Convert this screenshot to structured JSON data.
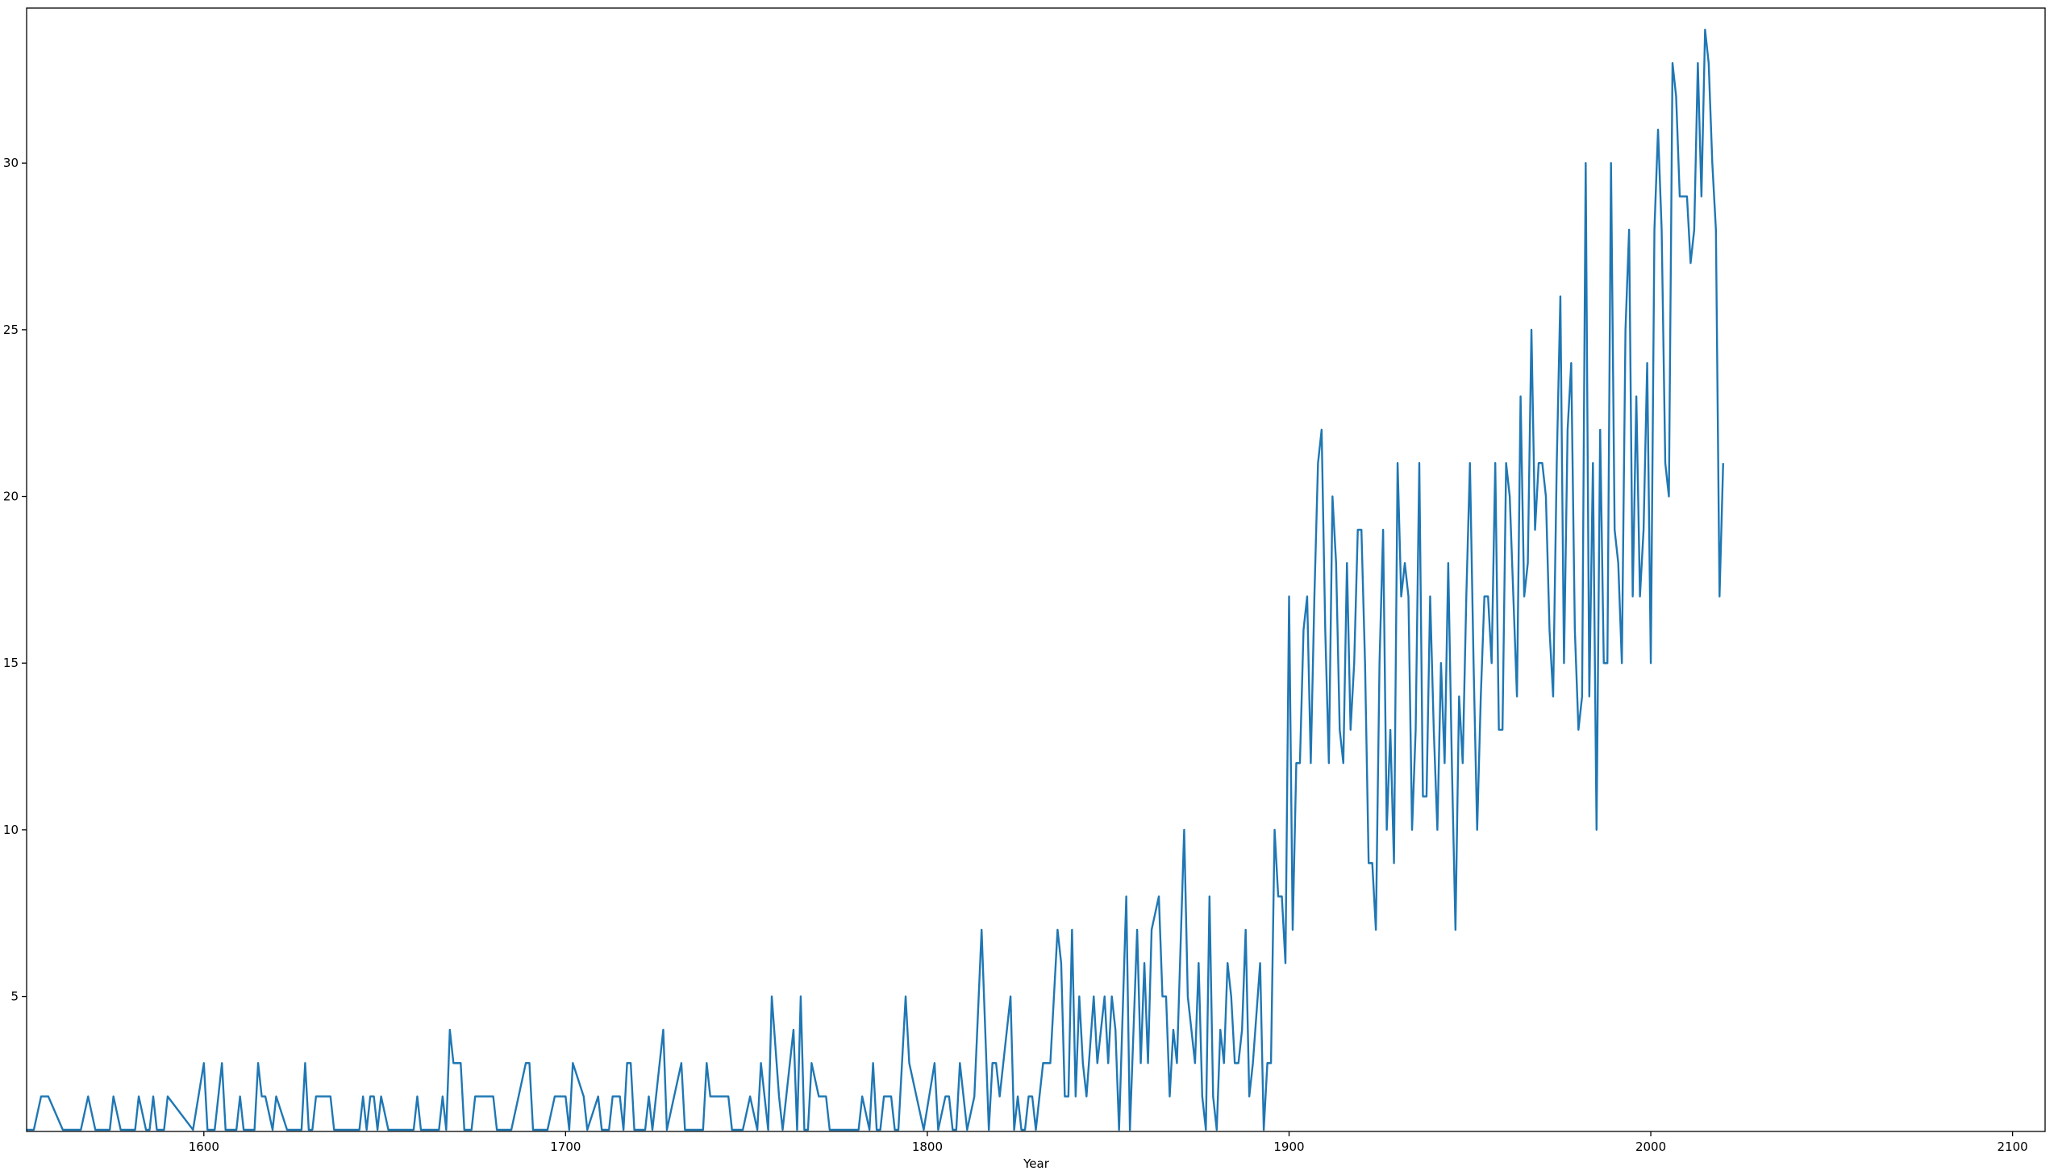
{
  "chart_data": {
    "type": "line",
    "xlabel": "Year",
    "x": [
      1551,
      1553,
      1555,
      1557,
      1561,
      1566,
      1568,
      1570,
      1574,
      1575,
      1577,
      1581,
      1582,
      1584,
      1585,
      1586,
      1587,
      1589,
      1590,
      1597,
      1600,
      1601,
      1603,
      1605,
      1606,
      1609,
      1610,
      1611,
      1614,
      1615,
      1616,
      1617,
      1619,
      1620,
      1623,
      1627,
      1628,
      1629,
      1630,
      1631,
      1635,
      1636,
      1643,
      1644,
      1645,
      1646,
      1647,
      1648,
      1649,
      1651,
      1658,
      1659,
      1660,
      1665,
      1666,
      1667,
      1668,
      1669,
      1671,
      1672,
      1674,
      1675,
      1680,
      1681,
      1685,
      1689,
      1690,
      1691,
      1695,
      1697,
      1700,
      1701,
      1702,
      1705,
      1706,
      1709,
      1710,
      1712,
      1713,
      1715,
      1716,
      1717,
      1718,
      1719,
      1722,
      1723,
      1724,
      1727,
      1728,
      1732,
      1733,
      1738,
      1739,
      1740,
      1745,
      1746,
      1749,
      1751,
      1753,
      1754,
      1756,
      1757,
      1759,
      1760,
      1763,
      1764,
      1765,
      1766,
      1767,
      1768,
      1770,
      1772,
      1773,
      1781,
      1782,
      1784,
      1785,
      1786,
      1787,
      1788,
      1790,
      1791,
      1792,
      1794,
      1795,
      1797,
      1799,
      1802,
      1803,
      1805,
      1806,
      1807,
      1808,
      1809,
      1811,
      1813,
      1815,
      1817,
      1818,
      1819,
      1820,
      1823,
      1824,
      1825,
      1826,
      1827,
      1828,
      1829,
      1830,
      1832,
      1834,
      1836,
      1837,
      1838,
      1839,
      1840,
      1841,
      1842,
      1843,
      1844,
      1846,
      1847,
      1848,
      1849,
      1850,
      1851,
      1852,
      1853,
      1855,
      1856,
      1858,
      1859,
      1860,
      1861,
      1862,
      1864,
      1865,
      1866,
      1867,
      1868,
      1869,
      1871,
      1872,
      1873,
      1874,
      1875,
      1876,
      1877,
      1878,
      1879,
      1880,
      1881,
      1882,
      1883,
      1884,
      1885,
      1886,
      1887,
      1888,
      1889,
      1890,
      1892,
      1893,
      1894,
      1895,
      1896,
      1897,
      1898,
      1899,
      1900,
      1901,
      1902,
      1903,
      1904,
      1905,
      1906,
      1907,
      1908,
      1909,
      1910,
      1911,
      1912,
      1913,
      1914,
      1915,
      1916,
      1917,
      1918,
      1919,
      1920,
      1921,
      1922,
      1923,
      1924,
      1925,
      1926,
      1927,
      1928,
      1929,
      1930,
      1931,
      1932,
      1933,
      1934,
      1935,
      1936,
      1937,
      1938,
      1939,
      1940,
      1941,
      1942,
      1943,
      1944,
      1945,
      1946,
      1947,
      1948,
      1949,
      1950,
      1951,
      1952,
      1953,
      1954,
      1955,
      1956,
      1957,
      1958,
      1959,
      1960,
      1961,
      1962,
      1963,
      1964,
      1965,
      1966,
      1967,
      1968,
      1969,
      1970,
      1971,
      1972,
      1973,
      1974,
      1975,
      1976,
      1977,
      1978,
      1979,
      1980,
      1981,
      1982,
      1983,
      1984,
      1985,
      1986,
      1987,
      1988,
      1989,
      1990,
      1991,
      1992,
      1993,
      1994,
      1995,
      1996,
      1997,
      1998,
      1999,
      2000,
      2001,
      2002,
      2003,
      2004,
      2005,
      2006,
      2007,
      2008,
      2009,
      2010,
      2011,
      2012,
      2013,
      2014,
      2015,
      2016,
      2017,
      2018,
      2019,
      2020
    ],
    "series": [
      {
        "color": "#1f77b4",
        "values": [
          1,
          1,
          2,
          2,
          1,
          1,
          2,
          1,
          1,
          2,
          1,
          1,
          2,
          1,
          1,
          2,
          1,
          1,
          2,
          1,
          3,
          1,
          1,
          3,
          1,
          1,
          2,
          1,
          1,
          3,
          2,
          2,
          1,
          2,
          1,
          1,
          3,
          1,
          1,
          2,
          2,
          1,
          1,
          2,
          1,
          2,
          2,
          1,
          2,
          1,
          1,
          2,
          1,
          1,
          2,
          1,
          4,
          3,
          3,
          1,
          1,
          2,
          2,
          1,
          1,
          3,
          3,
          1,
          1,
          2,
          2,
          1,
          3,
          2,
          1,
          2,
          1,
          1,
          2,
          2,
          1,
          3,
          3,
          1,
          1,
          2,
          1,
          4,
          1,
          3,
          1,
          1,
          3,
          2,
          2,
          1,
          1,
          2,
          1,
          3,
          1,
          5,
          2,
          1,
          4,
          1,
          5,
          1,
          1,
          3,
          2,
          2,
          1,
          1,
          2,
          1,
          3,
          1,
          1,
          2,
          2,
          1,
          1,
          5,
          3,
          2,
          1,
          3,
          1,
          2,
          2,
          1,
          1,
          3,
          1,
          2,
          7,
          1,
          3,
          3,
          2,
          5,
          1,
          2,
          1,
          1,
          2,
          2,
          1,
          3,
          3,
          7,
          6,
          2,
          2,
          7,
          2,
          5,
          3,
          2,
          5,
          3,
          4,
          5,
          3,
          5,
          4,
          1,
          8,
          1,
          7,
          3,
          6,
          3,
          7,
          8,
          5,
          5,
          2,
          4,
          3,
          10,
          5,
          4,
          3,
          6,
          2,
          1,
          8,
          2,
          1,
          4,
          3,
          6,
          5,
          3,
          3,
          4,
          7,
          2,
          3,
          6,
          1,
          3,
          3,
          10,
          8,
          8,
          6,
          17,
          7,
          12,
          12,
          16,
          17,
          12,
          17,
          21,
          22,
          16,
          12,
          20,
          18,
          13,
          12,
          18,
          13,
          15,
          19,
          19,
          15,
          9,
          9,
          7,
          15,
          19,
          10,
          13,
          9,
          21,
          17,
          18,
          17,
          10,
          13,
          21,
          11,
          11,
          17,
          13,
          10,
          15,
          12,
          18,
          12,
          7,
          14,
          12,
          17,
          21,
          15,
          10,
          14,
          17,
          17,
          15,
          21,
          13,
          13,
          21,
          20,
          17,
          14,
          23,
          17,
          18,
          25,
          19,
          21,
          21,
          20,
          16,
          14,
          21,
          26,
          15,
          22,
          24,
          16,
          13,
          14,
          30,
          14,
          21,
          10,
          22,
          15,
          15,
          30,
          19,
          18,
          15,
          25,
          28,
          17,
          23,
          17,
          19,
          24,
          15,
          28,
          31,
          28,
          21,
          20,
          33,
          32,
          29,
          29,
          29,
          27,
          28,
          33,
          29,
          34,
          33,
          30,
          28,
          17,
          21
        ]
      }
    ],
    "xlim": [
      1551,
      2109
    ],
    "xticks": [
      1600,
      1700,
      1800,
      1900,
      2000,
      2100
    ],
    "ylim": [
      0.95,
      34.65
    ],
    "yticks": [
      5,
      10,
      15,
      20,
      25,
      30
    ],
    "grid": false
  }
}
